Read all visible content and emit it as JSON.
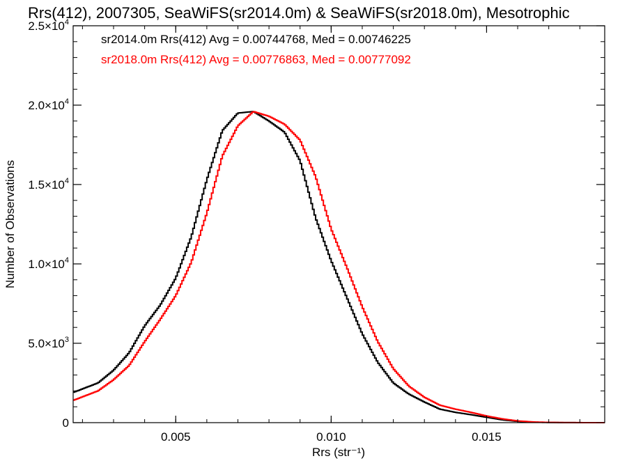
{
  "chart_data": {
    "type": "line",
    "title": "Rrs(412), 2007305, SeaWiFS(sr2014.0m) & SeaWiFS(sr2018.0m), Mesotrophic",
    "xlabel": "Rrs (str⁻¹)",
    "ylabel": "Number of Observations",
    "xlim": [
      0.0017,
      0.0188
    ],
    "ylim": [
      0,
      25000
    ],
    "x_ticks": [
      {
        "value": 0.005,
        "label": "0.005"
      },
      {
        "value": 0.01,
        "label": "0.010"
      },
      {
        "value": 0.015,
        "label": "0.015"
      }
    ],
    "y_ticks": [
      {
        "value": 0,
        "mant": "0",
        "exp": ""
      },
      {
        "value": 5000,
        "mant": "5.0×10",
        "exp": "3"
      },
      {
        "value": 10000,
        "mant": "1.0×10",
        "exp": "4"
      },
      {
        "value": 15000,
        "mant": "1.5×10",
        "exp": "4"
      },
      {
        "value": 20000,
        "mant": "2.0×10",
        "exp": "4"
      },
      {
        "value": 25000,
        "mant": "2.5×10",
        "exp": "4"
      }
    ],
    "grid": false,
    "annotations": [
      {
        "text": "sr2014.0m Rrs(412) Avg = 0.00744768, Med = 0.00746225",
        "color": "#000000"
      },
      {
        "text": "sr2018.0m Rrs(412) Avg = 0.00776863, Med = 0.00777092",
        "color": "#ff0000"
      }
    ],
    "series": [
      {
        "color": "#000000",
        "style": "step",
        "points": [
          [
            0.0017,
            1900
          ],
          [
            0.0025,
            2500
          ],
          [
            0.003,
            3300
          ],
          [
            0.0035,
            4400
          ],
          [
            0.004,
            6100
          ],
          [
            0.0045,
            7400
          ],
          [
            0.005,
            9100
          ],
          [
            0.0055,
            11700
          ],
          [
            0.006,
            15300
          ],
          [
            0.0065,
            18400
          ],
          [
            0.007,
            19500
          ],
          [
            0.0075,
            19600
          ],
          [
            0.008,
            19000
          ],
          [
            0.0085,
            18300
          ],
          [
            0.009,
            16500
          ],
          [
            0.0095,
            12900
          ],
          [
            0.01,
            10200
          ],
          [
            0.0105,
            7900
          ],
          [
            0.011,
            5600
          ],
          [
            0.0115,
            3800
          ],
          [
            0.012,
            2500
          ],
          [
            0.0125,
            1800
          ],
          [
            0.013,
            1300
          ],
          [
            0.0135,
            850
          ],
          [
            0.014,
            650
          ],
          [
            0.0145,
            500
          ],
          [
            0.015,
            340
          ],
          [
            0.0155,
            180
          ],
          [
            0.016,
            80
          ],
          [
            0.0165,
            30
          ],
          [
            0.017,
            12
          ],
          [
            0.0175,
            5
          ],
          [
            0.018,
            2
          ],
          [
            0.0188,
            0
          ]
        ]
      },
      {
        "color": "#ff0000",
        "style": "step",
        "points": [
          [
            0.0017,
            1400
          ],
          [
            0.0025,
            2000
          ],
          [
            0.003,
            2700
          ],
          [
            0.0035,
            3600
          ],
          [
            0.004,
            5100
          ],
          [
            0.0045,
            6500
          ],
          [
            0.005,
            8000
          ],
          [
            0.0055,
            10100
          ],
          [
            0.006,
            13200
          ],
          [
            0.0065,
            16800
          ],
          [
            0.007,
            18700
          ],
          [
            0.0075,
            19600
          ],
          [
            0.008,
            19300
          ],
          [
            0.0085,
            18800
          ],
          [
            0.009,
            17800
          ],
          [
            0.0095,
            15500
          ],
          [
            0.01,
            12200
          ],
          [
            0.0105,
            9800
          ],
          [
            0.011,
            7300
          ],
          [
            0.0115,
            5100
          ],
          [
            0.012,
            3400
          ],
          [
            0.0125,
            2300
          ],
          [
            0.013,
            1600
          ],
          [
            0.0135,
            1100
          ],
          [
            0.014,
            850
          ],
          [
            0.0145,
            650
          ],
          [
            0.015,
            420
          ],
          [
            0.0155,
            240
          ],
          [
            0.016,
            110
          ],
          [
            0.0165,
            45
          ],
          [
            0.017,
            18
          ],
          [
            0.0175,
            7
          ],
          [
            0.018,
            3
          ],
          [
            0.0188,
            0
          ]
        ]
      }
    ]
  }
}
